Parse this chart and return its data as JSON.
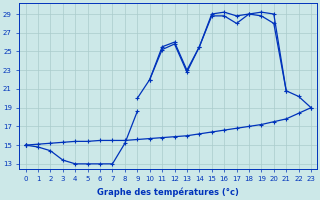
{
  "bg_color": "#cce8e8",
  "grid_color": "#aacccc",
  "line_color": "#0033bb",
  "xlabel": "Graphe des températures (°c)",
  "hours": [
    0,
    1,
    2,
    3,
    4,
    5,
    6,
    7,
    8,
    9,
    10,
    11,
    12,
    13,
    14,
    15,
    16,
    17,
    18,
    19,
    20,
    21,
    22,
    23
  ],
  "s1": [
    15.0,
    14.8,
    14.4,
    13.4,
    13.0,
    13.0,
    13.0,
    13.0,
    15.2,
    18.6,
    null,
    null,
    null,
    null,
    null,
    null,
    null,
    null,
    null,
    null,
    null,
    null,
    null,
    null
  ],
  "s2": [
    15.0,
    null,
    null,
    null,
    null,
    null,
    null,
    null,
    null,
    null,
    22.0,
    25.5,
    26.0,
    23.0,
    25.5,
    29.0,
    29.2,
    28.8,
    29.0,
    29.2,
    29.0,
    20.8,
    20.2,
    19.0
  ],
  "s3": [
    15.0,
    null,
    null,
    null,
    null,
    null,
    null,
    null,
    null,
    20.0,
    22.0,
    25.2,
    25.8,
    22.8,
    25.5,
    28.8,
    28.8,
    28.0,
    29.0,
    28.8,
    28.0,
    20.8,
    null,
    null
  ],
  "s4": [
    15.0,
    15.1,
    15.2,
    15.3,
    15.4,
    15.4,
    15.5,
    15.5,
    15.5,
    15.6,
    15.7,
    15.8,
    15.9,
    16.0,
    16.2,
    16.4,
    16.6,
    16.8,
    17.0,
    17.2,
    17.5,
    17.8,
    18.4,
    19.0
  ],
  "ylim": [
    12.5,
    30.2
  ],
  "yticks": [
    13,
    15,
    17,
    19,
    21,
    23,
    25,
    27,
    29
  ],
  "marker_size": 2.5,
  "line_width": 0.9,
  "xlabel_fontsize": 6,
  "tick_fontsize": 5
}
